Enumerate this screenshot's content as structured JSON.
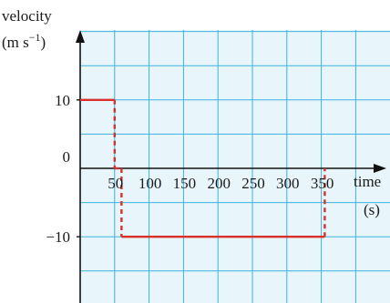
{
  "chart_data": {
    "type": "line",
    "title": "",
    "ylabel_line1": "velocity",
    "ylabel_unit": "(m s",
    "ylabel_exp": "−1",
    "ylabel_close": ")",
    "xlabel_line1": "time",
    "xlabel_line2": "(s)",
    "xlim": [
      0,
      400
    ],
    "ylim": [
      -20,
      20
    ],
    "grid": true,
    "x_ticks": [
      50,
      100,
      150,
      200,
      250,
      300,
      350
    ],
    "x_tick_labels": [
      "50",
      "100",
      "150",
      "200",
      "250",
      "300",
      "350"
    ],
    "y_ticks": [
      10,
      0,
      -10
    ],
    "y_tick_labels": [
      "10",
      "0",
      "−10"
    ],
    "series": [
      {
        "x": [
          0,
          50,
          50,
          60,
          60,
          355,
          355
        ],
        "y": [
          10,
          10,
          0,
          0,
          -10,
          -10,
          0
        ],
        "segment_styles": [
          "solid",
          "dashed",
          "dashed",
          "dashed",
          "solid",
          "dashed"
        ],
        "color": "#d9302c"
      }
    ]
  },
  "colors": {
    "grid": "#3ab3de",
    "background": "#e8f5fb",
    "axis": "#111111",
    "line": "#d9302c"
  }
}
